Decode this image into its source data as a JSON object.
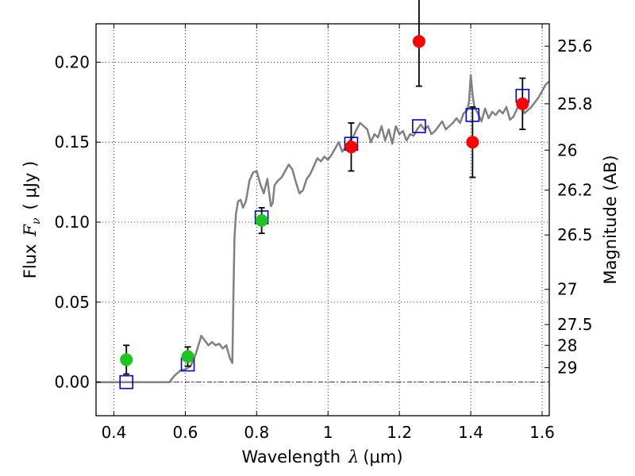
{
  "chart_data": {
    "type": "scatter",
    "xlabel_prefix": "Wavelength",
    "xlabel_symbol": "λ",
    "xlabel_unit": "(μm)",
    "ylabel_prefix": "Flux",
    "ylabel_symbol": "F",
    "ylabel_subscript": "ν",
    "ylabel_unit": "( μJy )",
    "y2label": "Magnitude (AB)",
    "xlim": [
      0.35,
      1.62
    ],
    "ylim": [
      -0.021,
      0.224
    ],
    "grid": true,
    "x_ticks": [
      0.4,
      0.6,
      0.8,
      1.0,
      1.2,
      1.4,
      1.6
    ],
    "x_tick_labels": [
      "0.4",
      "0.6",
      "0.8",
      "1",
      "1.2",
      "1.4",
      "1.6"
    ],
    "y_ticks": [
      0.0,
      0.05,
      0.1,
      0.15,
      0.2
    ],
    "y_tick_labels": [
      "0.00",
      "0.05",
      "0.10",
      "0.15",
      "0.20"
    ],
    "y2_ticks": [
      {
        "label": "25.6",
        "flux": 0.21
      },
      {
        "label": "25.8",
        "flux": 0.174
      },
      {
        "label": "26",
        "flux": 0.145
      },
      {
        "label": "26.2",
        "flux": 0.12
      },
      {
        "label": "26.5",
        "flux": 0.092
      },
      {
        "label": "27",
        "flux": 0.058
      },
      {
        "label": "27.5",
        "flux": 0.036
      },
      {
        "label": "28",
        "flux": 0.023
      },
      {
        "label": "29",
        "flux": 0.009
      }
    ],
    "zero_line": 0.0,
    "series": [
      {
        "style": "line",
        "color": "#808080",
        "x": [
          0.35,
          0.4,
          0.45,
          0.5,
          0.54,
          0.555,
          0.57,
          0.585,
          0.6,
          0.615,
          0.63,
          0.645,
          0.655,
          0.665,
          0.675,
          0.685,
          0.695,
          0.705,
          0.715,
          0.725,
          0.732,
          0.735,
          0.738,
          0.742,
          0.748,
          0.755,
          0.762,
          0.77,
          0.78,
          0.79,
          0.8,
          0.81,
          0.82,
          0.83,
          0.84,
          0.845,
          0.85,
          0.86,
          0.87,
          0.88,
          0.89,
          0.9,
          0.91,
          0.92,
          0.93,
          0.94,
          0.95,
          0.96,
          0.97,
          0.98,
          0.99,
          1.0,
          1.01,
          1.02,
          1.03,
          1.04,
          1.05,
          1.06,
          1.07,
          1.08,
          1.09,
          1.1,
          1.11,
          1.12,
          1.13,
          1.14,
          1.15,
          1.16,
          1.17,
          1.18,
          1.19,
          1.2,
          1.21,
          1.22,
          1.23,
          1.24,
          1.25,
          1.26,
          1.27,
          1.28,
          1.29,
          1.3,
          1.31,
          1.32,
          1.33,
          1.34,
          1.35,
          1.36,
          1.37,
          1.38,
          1.39,
          1.395,
          1.4,
          1.405,
          1.41,
          1.42,
          1.43,
          1.44,
          1.45,
          1.46,
          1.47,
          1.48,
          1.49,
          1.5,
          1.51,
          1.52,
          1.53,
          1.54,
          1.55,
          1.56,
          1.57,
          1.58,
          1.59,
          1.6,
          1.61,
          1.62
        ],
        "values": [
          0.0,
          0.0,
          0.0,
          0.0,
          0.0,
          0.0,
          0.004,
          0.007,
          0.008,
          0.01,
          0.018,
          0.029,
          0.026,
          0.023,
          0.025,
          0.023,
          0.024,
          0.021,
          0.023,
          0.015,
          0.012,
          0.055,
          0.09,
          0.105,
          0.113,
          0.114,
          0.109,
          0.113,
          0.126,
          0.131,
          0.132,
          0.124,
          0.118,
          0.127,
          0.11,
          0.112,
          0.123,
          0.126,
          0.128,
          0.132,
          0.136,
          0.133,
          0.125,
          0.118,
          0.12,
          0.127,
          0.13,
          0.135,
          0.14,
          0.138,
          0.141,
          0.139,
          0.142,
          0.146,
          0.15,
          0.144,
          0.147,
          0.151,
          0.153,
          0.158,
          0.162,
          0.16,
          0.158,
          0.15,
          0.155,
          0.153,
          0.16,
          0.151,
          0.158,
          0.149,
          0.16,
          0.155,
          0.157,
          0.151,
          0.155,
          0.154,
          0.158,
          0.161,
          0.158,
          0.16,
          0.155,
          0.157,
          0.16,
          0.163,
          0.158,
          0.16,
          0.162,
          0.165,
          0.162,
          0.168,
          0.17,
          0.175,
          0.192,
          0.18,
          0.172,
          0.168,
          0.163,
          0.171,
          0.165,
          0.169,
          0.167,
          0.17,
          0.168,
          0.172,
          0.164,
          0.166,
          0.171,
          0.175,
          0.168,
          0.17,
          0.172,
          0.175,
          0.178,
          0.182,
          0.186,
          0.188
        ]
      },
      {
        "style": "open-square",
        "color": "#0000cc",
        "x": [
          0.435,
          0.607,
          0.814,
          1.065,
          1.255,
          1.405,
          1.545
        ],
        "values": [
          0.0,
          0.011,
          0.103,
          0.149,
          0.16,
          0.167,
          0.179
        ]
      },
      {
        "style": "filled-circle",
        "color": "#1fc41f",
        "x": [
          0.435,
          0.607,
          0.814
        ],
        "values": [
          0.014,
          0.016,
          0.101
        ],
        "errors": [
          0.009,
          0.006,
          0.008
        ]
      },
      {
        "style": "filled-circle",
        "color": "#ff0000",
        "x": [
          1.065,
          1.255,
          1.405,
          1.545
        ],
        "values": [
          0.147,
          0.213,
          0.15,
          0.174
        ],
        "errors": [
          0.015,
          0.028,
          0.022,
          0.016
        ]
      }
    ]
  }
}
